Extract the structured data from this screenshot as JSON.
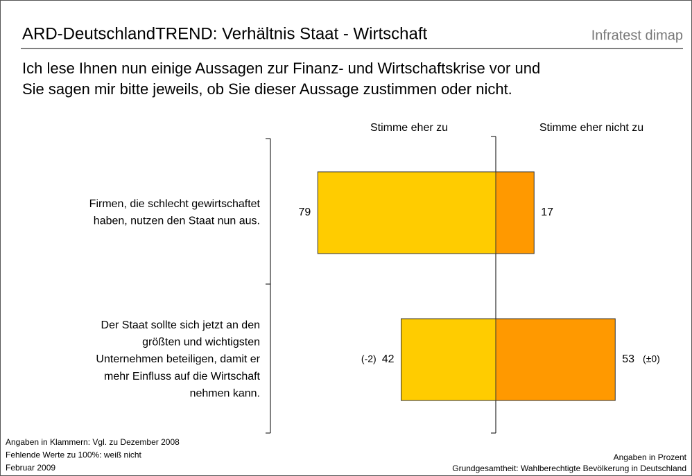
{
  "chart_data": {
    "type": "diverging_bar",
    "title": "ARD-DeutschlandTREND: Verhältnis Staat - Wirtschaft",
    "brand": "Infratest dimap",
    "subtitle": [
      "Ich lese Ihnen nun einige Aussagen zur Finanz- und Wirtschaftskrise vor und",
      "Sie sagen mir bitte jeweils, ob Sie dieser Aussage zustimmen oder nicht."
    ],
    "categories": [
      [
        "Firmen, die schlecht gewirtschaftet",
        "haben, nutzen den Staat nun aus."
      ],
      [
        "Der Staat sollte sich jetzt an den",
        "größten und wichtigsten",
        "Unternehmen beteiligen, damit er",
        "mehr Einfluss auf die Wirtschaft",
        "nehmen kann."
      ]
    ],
    "series": [
      {
        "name": "Stimme eher zu",
        "color": "#ffcc00",
        "values": [
          79,
          42
        ],
        "changes": [
          null,
          "(-2)"
        ]
      },
      {
        "name": "Stimme eher nicht zu",
        "color": "#ff9900",
        "values": [
          17,
          53
        ],
        "changes": [
          null,
          "(±0)"
        ]
      }
    ],
    "notes_left": [
      "Angaben in Klammern: Vgl. zu Dezember 2008",
      "Fehlende Werte zu 100%: weiß nicht",
      "Februar 2009"
    ],
    "notes_right": [
      "Angaben in Prozent",
      "Grundgesamtheit: Wahlberechtigte Bevölkerung in Deutschland"
    ]
  }
}
